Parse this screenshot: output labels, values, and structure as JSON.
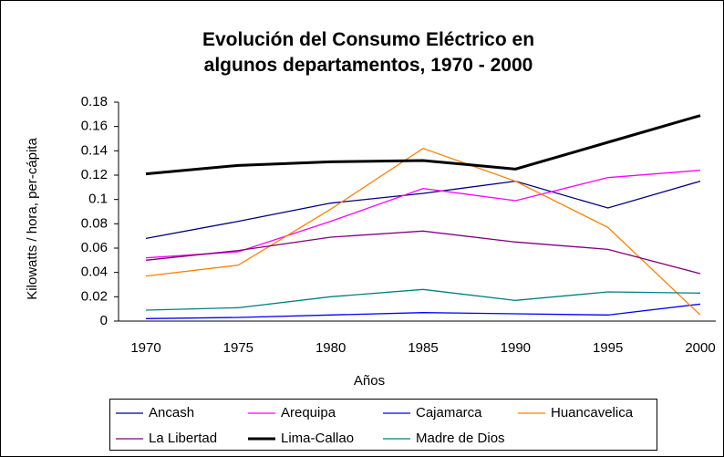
{
  "chart_data": {
    "type": "line",
    "title": "Evolución del Consumo Eléctrico en algunos departamentos, 1970 - 2000",
    "x_label": "Años",
    "y_label": "Kilowatts / hora, per-cápita",
    "categories": [
      "1970",
      "1975",
      "1980",
      "1985",
      "1990",
      "1995",
      "2000"
    ],
    "ylim": [
      0,
      0.18
    ],
    "yticks": [
      0,
      0.02,
      0.04,
      0.06,
      0.08,
      0.1,
      0.12,
      0.14,
      0.16,
      0.18
    ],
    "grid": false,
    "legend": "bottom",
    "series": [
      {
        "name": "Ancash",
        "color": "#000080",
        "values": [
          0.068,
          0.082,
          0.097,
          0.105,
          0.115,
          0.093,
          0.115
        ]
      },
      {
        "name": "Arequipa",
        "color": "#ff00ff",
        "values": [
          0.052,
          0.057,
          0.082,
          0.109,
          0.099,
          0.118,
          0.124
        ]
      },
      {
        "name": "Cajamarca",
        "color": "#0000ff",
        "values": [
          0.002,
          0.003,
          0.005,
          0.007,
          0.006,
          0.005,
          0.014
        ]
      },
      {
        "name": "Huancavelica",
        "color": "#ff8000",
        "values": [
          0.037,
          0.046,
          0.092,
          0.142,
          0.115,
          0.077,
          0.005
        ]
      },
      {
        "name": "La Libertad",
        "color": "#800080",
        "values": [
          0.05,
          0.058,
          0.069,
          0.074,
          0.065,
          0.059,
          0.039
        ]
      },
      {
        "name": "Lima-Callao",
        "color": "#000000",
        "width": 3,
        "values": [
          0.121,
          0.128,
          0.131,
          0.132,
          0.125,
          0.147,
          0.169
        ]
      },
      {
        "name": "Madre de Dios",
        "color": "#008080",
        "values": [
          0.009,
          0.011,
          0.02,
          0.026,
          0.017,
          0.024,
          0.023
        ]
      }
    ]
  }
}
